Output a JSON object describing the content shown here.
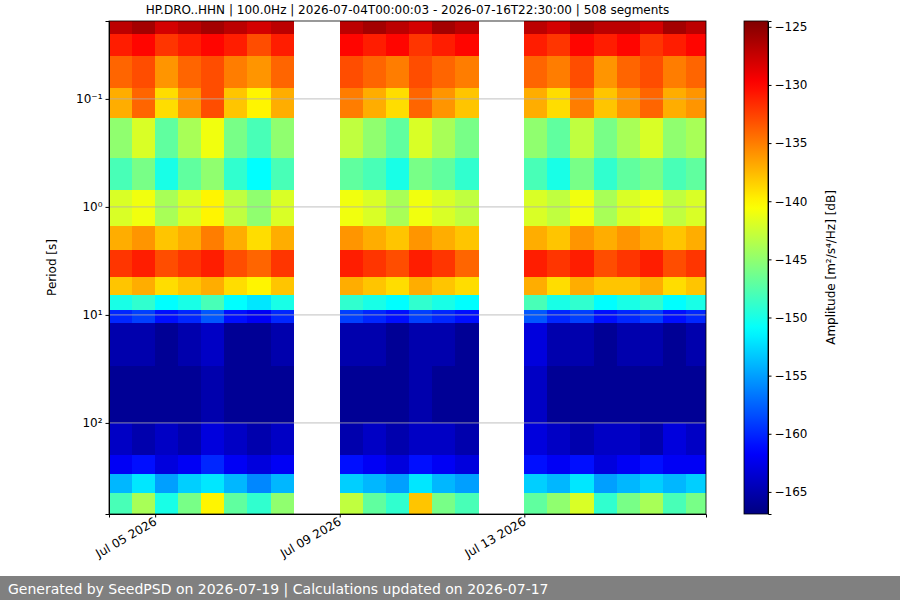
{
  "chart_data": {
    "type": "heatmap",
    "title": "HP.DRO..HHN | 100.0Hz | 2026-07-04T00:00:03 - 2026-07-16T22:30:00 | 508 segments",
    "y_label": "Period [s]",
    "footer": "Generated by SeedPSD on 2026-07-19 | Calculations updated on 2026-07-17",
    "log": "y",
    "grid": "y",
    "xlim": [
      "2026-07-04T00:00:03",
      "2026-07-16T22:30:00"
    ],
    "xticks": [
      {
        "value": "2026-07-05T00:00:00",
        "label": "Jul 05 2026"
      },
      {
        "value": "2026-07-09T00:00:00",
        "label": "Jul 09 2026"
      },
      {
        "value": "2026-07-13T00:00:00",
        "label": "Jul 13 2026"
      }
    ],
    "ylim": [
      0.019,
      697
    ],
    "yticks": [
      {
        "value": 0.1,
        "label": "10⁻¹"
      },
      {
        "value": 1,
        "label": "10⁰"
      },
      {
        "value": 10,
        "label": "10¹"
      },
      {
        "value": 100,
        "label": "10²"
      }
    ],
    "x_bins": [
      "2026-07-04T00:00:03",
      "2026-07-04T12:00:00",
      "2026-07-05T00:00:00",
      "2026-07-05T12:00:00",
      "2026-07-06T00:00:00",
      "2026-07-06T12:00:00",
      "2026-07-07T00:00:00",
      "2026-07-07T12:00:00",
      "2026-07-08T00:00:00",
      "2026-07-08T12:00:00",
      "2026-07-09T00:00:00",
      "2026-07-09T12:00:00",
      "2026-07-10T00:00:00",
      "2026-07-10T12:00:00",
      "2026-07-11T00:00:00",
      "2026-07-11T12:00:00",
      "2026-07-12T00:00:00",
      "2026-07-12T12:00:00",
      "2026-07-13T00:00:00",
      "2026-07-13T12:00:00",
      "2026-07-14T00:00:00",
      "2026-07-14T12:00:00",
      "2026-07-15T00:00:00",
      "2026-07-15T12:00:00",
      "2026-07-16T00:00:00",
      "2026-07-16T12:00:00",
      "2026-07-16T22:30:00"
    ],
    "y_bins": [
      0.019,
      0.025,
      0.04,
      0.08,
      0.15,
      0.35,
      0.7,
      1.5,
      2.5,
      4.5,
      6.5,
      9,
      12,
      30,
      100,
      200,
      300,
      450,
      697
    ],
    "cells": [
      [
        -127,
        -126,
        -128,
        -127,
        -126,
        -127,
        -128,
        -127,
        null,
        null,
        -127,
        -126,
        -127,
        -128,
        -126,
        -127,
        null,
        null,
        -127,
        -128,
        -126,
        -127,
        -127,
        -128,
        -126,
        -127
      ],
      [
        -131,
        -130,
        -132,
        -131,
        -130,
        -131,
        -133,
        -131,
        null,
        null,
        -130,
        -131,
        -130,
        -132,
        -131,
        -130,
        null,
        null,
        -131,
        -132,
        -130,
        -131,
        -130,
        -132,
        -131,
        -130
      ],
      [
        -134,
        -133,
        -136,
        -134,
        -133,
        -135,
        -136,
        -134,
        null,
        null,
        -133,
        -134,
        -135,
        -133,
        -134,
        -135,
        null,
        null,
        -134,
        -135,
        -133,
        -136,
        -134,
        -133,
        -135,
        -134
      ],
      [
        -137,
        -134,
        -139,
        -136,
        -133,
        -138,
        -140,
        -137,
        null,
        null,
        -135,
        -137,
        -139,
        -134,
        -136,
        -138,
        null,
        null,
        -137,
        -139,
        -135,
        -138,
        -136,
        -134,
        -137,
        -136
      ],
      [
        -145,
        -142,
        -147,
        -144,
        -141,
        -146,
        -148,
        -145,
        null,
        null,
        -143,
        -145,
        -147,
        -142,
        -144,
        -146,
        null,
        null,
        -145,
        -147,
        -143,
        -146,
        -144,
        -142,
        -145,
        -144
      ],
      [
        -148,
        -146,
        -150,
        -147,
        -145,
        -149,
        -151,
        -148,
        null,
        null,
        -147,
        -148,
        -150,
        -146,
        -147,
        -149,
        null,
        null,
        -148,
        -150,
        -146,
        -149,
        -147,
        -146,
        -148,
        -147
      ],
      [
        -142,
        -141,
        -144,
        -142,
        -140,
        -143,
        -145,
        -142,
        null,
        null,
        -141,
        -142,
        -144,
        -141,
        -142,
        -143,
        null,
        null,
        -142,
        -143,
        -141,
        -144,
        -142,
        -141,
        -143,
        -142
      ],
      [
        -137,
        -136,
        -138,
        -137,
        -135,
        -137,
        -139,
        -137,
        null,
        null,
        -136,
        -137,
        -138,
        -136,
        -137,
        -138,
        null,
        null,
        -137,
        -138,
        -136,
        -137,
        -136,
        -137,
        -138,
        -137
      ],
      [
        -132,
        -131,
        -133,
        -132,
        -131,
        -133,
        -134,
        -132,
        null,
        null,
        -131,
        -132,
        -133,
        -131,
        -132,
        -134,
        null,
        null,
        -131,
        -132,
        -131,
        -133,
        -132,
        -131,
        -133,
        -132
      ],
      [
        -138,
        -137,
        -139,
        -138,
        -137,
        -139,
        -140,
        -138,
        null,
        null,
        -137,
        -138,
        -139,
        -137,
        -138,
        -139,
        null,
        null,
        -137,
        -139,
        -137,
        -138,
        -138,
        -137,
        -139,
        -138
      ],
      [
        -150,
        -149,
        -151,
        -150,
        -148,
        -151,
        -152,
        -150,
        null,
        null,
        -149,
        -150,
        -151,
        -149,
        -150,
        -151,
        null,
        null,
        -148,
        -150,
        -149,
        -151,
        -150,
        -149,
        -151,
        -150
      ],
      [
        -160,
        -159,
        -161,
        -160,
        -158,
        -161,
        -162,
        -160,
        null,
        null,
        -159,
        -160,
        -161,
        -159,
        -160,
        -161,
        null,
        null,
        -158,
        -160,
        -159,
        -161,
        -160,
        -159,
        -161,
        -160
      ],
      [
        -165,
        -165,
        -166,
        -165,
        -164,
        -166,
        -166,
        -165,
        null,
        null,
        -165,
        -165,
        -166,
        -165,
        -165,
        -166,
        null,
        null,
        -163,
        -165,
        -165,
        -166,
        -165,
        -165,
        -166,
        -165
      ],
      [
        -166,
        -166,
        -166,
        -166,
        -165,
        -166,
        -166,
        -166,
        null,
        null,
        -166,
        -166,
        -166,
        -165,
        -166,
        -166,
        null,
        null,
        -164,
        -166,
        -166,
        -166,
        -166,
        -166,
        -166,
        -166
      ],
      [
        -164,
        -165,
        -164,
        -165,
        -163,
        -164,
        -165,
        -164,
        null,
        null,
        -165,
        -164,
        -165,
        -164,
        -164,
        -165,
        null,
        null,
        -163,
        -164,
        -165,
        -164,
        -164,
        -165,
        -163,
        -164
      ],
      [
        -162,
        -161,
        -163,
        -162,
        -160,
        -162,
        -163,
        -162,
        null,
        null,
        -161,
        -162,
        -163,
        -161,
        -162,
        -163,
        null,
        null,
        -161,
        -162,
        -161,
        -163,
        -162,
        -161,
        -162,
        -162
      ],
      [
        -154,
        -152,
        -155,
        -153,
        -152,
        -154,
        -156,
        -154,
        null,
        null,
        -153,
        -154,
        -155,
        -152,
        -154,
        -155,
        null,
        null,
        -153,
        -154,
        -152,
        -155,
        -154,
        -153,
        -154,
        -153
      ],
      [
        -148,
        -144,
        -150,
        -146,
        -140,
        -147,
        -149,
        -145,
        null,
        null,
        -143,
        -147,
        -149,
        -138,
        -146,
        -148,
        null,
        null,
        -147,
        -145,
        -142,
        -149,
        -146,
        -144,
        -148,
        -146
      ]
    ],
    "colorbar": {
      "label": "Amplitude [m²/s⁴/Hz] [dB]",
      "range": [
        -166.9,
        -124.5
      ],
      "ticks": [
        {
          "value": -125,
          "label": "−125"
        },
        {
          "value": -130,
          "label": "−130"
        },
        {
          "value": -135,
          "label": "−135"
        },
        {
          "value": -140,
          "label": "−140"
        },
        {
          "value": -145,
          "label": "−145"
        },
        {
          "value": -150,
          "label": "−150"
        },
        {
          "value": -155,
          "label": "−155"
        },
        {
          "value": -160,
          "label": "−160"
        },
        {
          "value": -165,
          "label": "−165"
        }
      ]
    }
  }
}
